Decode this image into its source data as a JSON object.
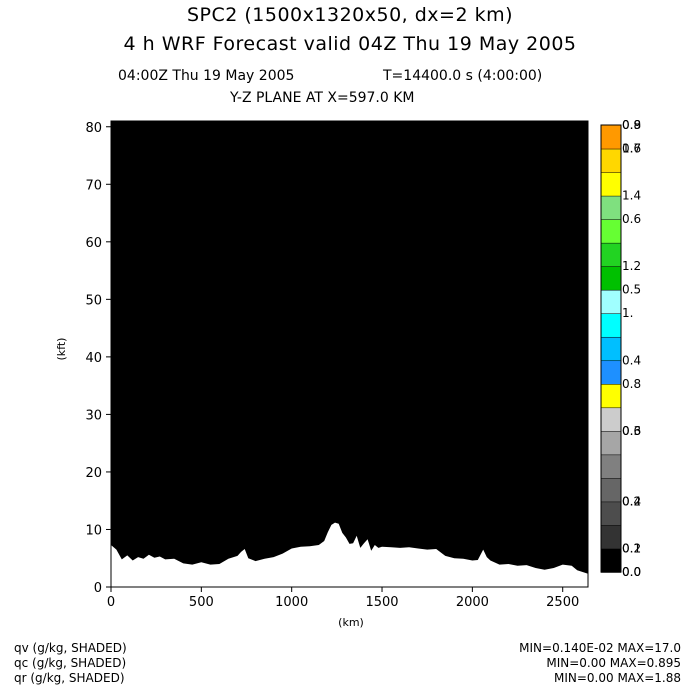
{
  "header": {
    "title1": "SPC2 (1500x1320x50, dx=2 km)",
    "title2": "4 h WRF Forecast valid 04Z Thu 19 May 2005",
    "time_line": "04:00Z Thu 19 May 2005",
    "t_line": "T=14400.0 s (4:00:00)",
    "plane": "Y-Z PLANE AT X=597.0 KM"
  },
  "footer": {
    "variables": [
      {
        "label": "qv (g/kg, SHADED)",
        "stats": "MIN=0.140E-02 MAX=17.0"
      },
      {
        "label": "qc (g/kg, SHADED)",
        "stats": "MIN=0.00 MAX=0.895"
      },
      {
        "label": "qr (g/kg, SHADED)",
        "stats": "MIN=0.00 MAX=1.88"
      }
    ]
  },
  "colorbar": {
    "colors": [
      "#000000",
      "#333333",
      "#4d4d4d",
      "#666666",
      "#808080",
      "#a6a6a6",
      "#cccccc",
      "#ffff00",
      "#1e90ff",
      "#00bfff",
      "#00ffff",
      "#a0ffff",
      "#00c000",
      "#22d322",
      "#66ff33",
      "#7fe07f",
      "#ffff00",
      "#ffd700",
      "#ff9900"
    ],
    "labels": [
      {
        "text": "0.0",
        "index": 0
      },
      {
        "text": "0.0",
        "index": 0
      },
      {
        "text": "0.2",
        "index": 1
      },
      {
        "text": "0.1",
        "index": 1
      },
      {
        "text": "0.4",
        "index": 3
      },
      {
        "text": "0.2",
        "index": 3
      },
      {
        "text": "0.6",
        "index": 6
      },
      {
        "text": "0.3",
        "index": 6
      },
      {
        "text": "0.8",
        "index": 8
      },
      {
        "text": "0.4",
        "index": 9
      },
      {
        "text": "1.",
        "index": 11
      },
      {
        "text": "0.5",
        "index": 12
      },
      {
        "text": "1.2",
        "index": 13
      },
      {
        "text": "0.6",
        "index": 15
      },
      {
        "text": "1.4",
        "index": 16
      },
      {
        "text": "0.7",
        "index": 18
      },
      {
        "text": "1.6",
        "index": 18
      },
      {
        "text": "0.8",
        "index": 19
      },
      {
        "text": "0.9",
        "index": 19
      }
    ]
  },
  "chart_data": {
    "type": "area",
    "plane": "Y-Z PLANE AT X=597.0 KM",
    "xlabel": "(km)",
    "ylabel": "(kft)",
    "xlim": [
      0,
      2640
    ],
    "ylim": [
      0,
      81
    ],
    "xticks": [
      0,
      500,
      1000,
      1500,
      2000,
      2500
    ],
    "yticks": [
      0,
      10,
      20,
      30,
      40,
      50,
      60,
      70,
      80
    ],
    "fill_color": "#000000",
    "terrain_color": "#ffffff",
    "series": [
      {
        "name": "",
        "x": [
          0,
          30,
          60,
          90,
          120,
          150,
          180,
          210,
          240,
          270,
          300,
          350,
          400,
          450,
          500,
          550,
          600,
          650,
          700,
          720,
          740,
          760,
          800,
          850,
          900,
          950,
          1000,
          1050,
          1100,
          1150,
          1180,
          1200,
          1220,
          1240,
          1260,
          1280,
          1300,
          1320,
          1340,
          1360,
          1380,
          1400,
          1420,
          1440,
          1460,
          1480,
          1500,
          1550,
          1600,
          1650,
          1700,
          1750,
          1800,
          1850,
          1900,
          1950,
          2000,
          2030,
          2060,
          2080,
          2100,
          2150,
          2200,
          2250,
          2300,
          2350,
          2400,
          2450,
          2500,
          2550,
          2580,
          2610,
          2640
        ],
        "values": [
          7.3,
          6.5,
          4.8,
          5.5,
          4.6,
          5.2,
          4.9,
          5.6,
          5.1,
          5.3,
          4.8,
          4.9,
          4.1,
          3.9,
          4.3,
          3.9,
          4.0,
          4.9,
          5.4,
          6.1,
          6.6,
          5.0,
          4.5,
          4.9,
          5.2,
          5.8,
          6.7,
          7.0,
          7.1,
          7.3,
          8.0,
          9.5,
          10.8,
          11.2,
          11.0,
          9.4,
          8.6,
          7.5,
          7.6,
          8.9,
          6.8,
          7.6,
          8.3,
          6.3,
          7.3,
          6.8,
          7.0,
          6.9,
          6.8,
          6.9,
          6.7,
          6.5,
          6.6,
          5.4,
          5.0,
          4.9,
          4.6,
          4.7,
          6.5,
          5.2,
          4.6,
          3.9,
          4.0,
          3.7,
          3.8,
          3.3,
          3.0,
          3.3,
          3.9,
          3.7,
          2.9,
          2.6,
          2.3
        ]
      }
    ]
  }
}
